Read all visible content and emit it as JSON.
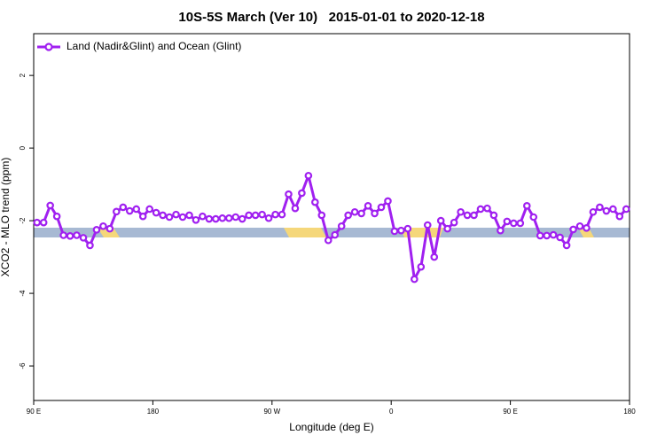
{
  "chart_data": {
    "type": "line",
    "title": "10S-5S March (Ver 10)   2015-01-01 to 2020-12-18",
    "xlabel": "Longitude (deg E)",
    "ylabel": "XCO2 - MLO trend (ppm)",
    "xlim": [
      90,
      540
    ],
    "ylim": [
      -6.95,
      3.15
    ],
    "xticks": [
      {
        "value": 90,
        "label": "90 E"
      },
      180,
      {
        "value": 270,
        "label": "90 W"
      },
      {
        "value": 360,
        "label": "0"
      },
      {
        "value": 450,
        "label": "90 E"
      },
      {
        "value": 540,
        "label": "180"
      }
    ],
    "yticks": [
      -6,
      -4,
      -2,
      0,
      2
    ],
    "legend": "top-left",
    "x": [
      92.5,
      97.5,
      102.5,
      107.5,
      112.5,
      117.5,
      122.5,
      127.5,
      132.5,
      137.5,
      142.5,
      147.5,
      152.5,
      157.5,
      162.5,
      167.5,
      172.5,
      177.5,
      182.5,
      187.5,
      192.5,
      197.5,
      202.5,
      207.5,
      212.5,
      217.5,
      222.5,
      227.5,
      232.5,
      237.5,
      242.5,
      247.5,
      252.5,
      257.5,
      262.5,
      267.5,
      272.5,
      277.5,
      282.5,
      287.5,
      292.5,
      297.5,
      302.5,
      307.5,
      312.5,
      317.5,
      322.5,
      327.5,
      332.5,
      337.5,
      342.5,
      347.5,
      352.5,
      357.5,
      362.5,
      367.5,
      372.5,
      377.5,
      382.5,
      387.5,
      392.5,
      397.5,
      402.5,
      407.5,
      412.5,
      417.5,
      422.5,
      427.5,
      432.5,
      437.5,
      442.5,
      447.5,
      452.5,
      457.5,
      462.5,
      467.5,
      472.5,
      477.5,
      482.5,
      487.5,
      492.5,
      497.5,
      502.5,
      507.5,
      512.5,
      517.5,
      522.5,
      527.5,
      532.5,
      537.5
    ],
    "series": [
      {
        "name": "Land (Nadir&Glint) and Ocean (Glint)",
        "color": "#a020f0",
        "values": [
          -2.05,
          -2.05,
          -1.58,
          -1.88,
          -2.4,
          -2.42,
          -2.4,
          -2.47,
          -2.68,
          -2.25,
          -2.15,
          -2.22,
          -1.75,
          -1.63,
          -1.73,
          -1.68,
          -1.88,
          -1.68,
          -1.78,
          -1.85,
          -1.9,
          -1.83,
          -1.9,
          -1.85,
          -1.98,
          -1.88,
          -1.95,
          -1.95,
          -1.93,
          -1.93,
          -1.9,
          -1.95,
          -1.85,
          -1.85,
          -1.83,
          -1.93,
          -1.83,
          -1.83,
          -1.27,
          -1.66,
          -1.24,
          -0.76,
          -1.49,
          -1.85,
          -2.54,
          -2.39,
          -2.15,
          -1.85,
          -1.76,
          -1.8,
          -1.59,
          -1.8,
          -1.63,
          -1.46,
          -2.29,
          -2.27,
          -2.22,
          -3.61,
          -3.27,
          -2.12,
          -3.0,
          -2.0,
          -2.22,
          -2.05,
          -1.76,
          -1.85,
          -1.85,
          -1.68,
          -1.66,
          -1.85,
          -2.27,
          -2.02,
          -2.07,
          -2.07,
          -1.59,
          -1.9,
          -2.41,
          -2.41,
          -2.39,
          -2.46,
          -2.68,
          -2.24,
          -2.15,
          -2.2,
          -1.76,
          -1.63,
          -1.73,
          -1.68,
          -1.88,
          -1.68
        ]
      }
    ]
  }
}
